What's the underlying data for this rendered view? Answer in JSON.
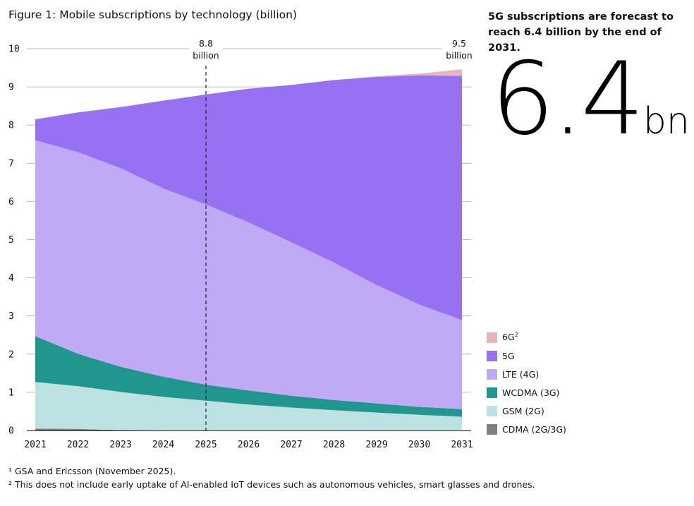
{
  "title": "Figure 1: Mobile subscriptions by technology (billion)",
  "headline": "5G subscriptions are forecast to reach 6.4 billion by the end of 2031.",
  "big_number": {
    "value": "6.4",
    "unit": "bn"
  },
  "annotations": [
    {
      "id": "a2025",
      "value": "8.8",
      "unit": "billion"
    },
    {
      "id": "a2031",
      "value": "9.5",
      "unit": "billion"
    }
  ],
  "legend": [
    {
      "label": "6G",
      "sup": "2",
      "color": "#e8b4bd"
    },
    {
      "label": "5G",
      "sup": "",
      "color": "#9672f3"
    },
    {
      "label": "LTE (4G)",
      "sup": "",
      "color": "#c0aaf5"
    },
    {
      "label": "WCDMA (3G)",
      "sup": "",
      "color": "#20968f"
    },
    {
      "label": "GSM (2G)",
      "sup": "",
      "color": "#bce2e1"
    },
    {
      "label": "CDMA (2G/3G)",
      "sup": "",
      "color": "#808080"
    }
  ],
  "footnotes": [
    "¹ GSA and Ericsson (November 2025).",
    "² This does not include early uptake of AI-enabled IoT devices such as autonomous vehicles, smart glasses and drones."
  ],
  "chart_data": {
    "type": "area",
    "stacked": true,
    "x": [
      2021,
      2022,
      2023,
      2024,
      2025,
      2026,
      2027,
      2028,
      2029,
      2030,
      2031
    ],
    "xlim": [
      2021,
      2031
    ],
    "ylim": [
      0,
      10
    ],
    "yticks": [
      0,
      1,
      2,
      3,
      4,
      5,
      6,
      7,
      8,
      9,
      10
    ],
    "grid": "horizontal",
    "legend_position": "right",
    "forecast_divider": 2025,
    "series": [
      {
        "name": "CDMA (2G/3G)",
        "color": "#808080",
        "values": [
          0.05,
          0.04,
          0.01,
          0,
          0,
          0,
          0,
          0,
          0,
          0,
          0
        ]
      },
      {
        "name": "GSM (2G)",
        "color": "#bce2e1",
        "values": [
          1.22,
          1.12,
          1.0,
          0.88,
          0.78,
          0.68,
          0.6,
          0.53,
          0.47,
          0.41,
          0.36
        ]
      },
      {
        "name": "WCDMA (3G)",
        "color": "#20968f",
        "values": [
          1.2,
          0.85,
          0.66,
          0.53,
          0.42,
          0.37,
          0.31,
          0.27,
          0.24,
          0.21,
          0.2
        ]
      },
      {
        "name": "LTE (4G)",
        "color": "#c0aaf5",
        "values": [
          5.13,
          5.28,
          5.2,
          4.93,
          4.72,
          4.4,
          4.02,
          3.6,
          3.1,
          2.68,
          2.33
        ]
      },
      {
        "name": "5G",
        "color": "#9672f3",
        "values": [
          0.55,
          1.04,
          1.6,
          2.3,
          2.88,
          3.5,
          4.12,
          4.78,
          5.45,
          6.0,
          6.4
        ]
      },
      {
        "name": "6G",
        "color": "#e8b4bd",
        "values": [
          0,
          0,
          0,
          0,
          0,
          0,
          0,
          0,
          0.02,
          0.05,
          0.17
        ]
      }
    ]
  }
}
